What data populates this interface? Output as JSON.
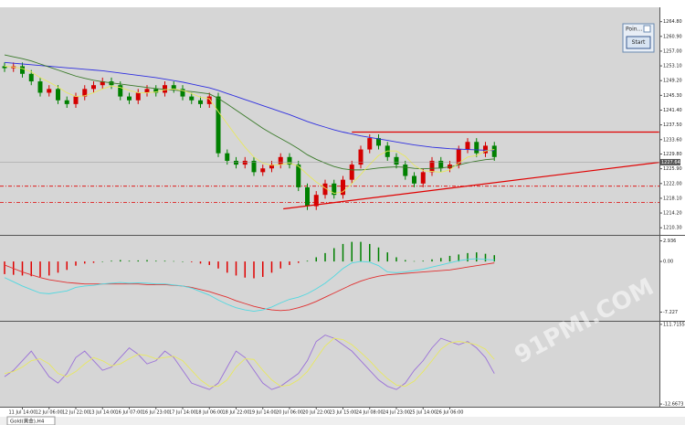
{
  "chart_data": [
    {
      "type": "candlestick",
      "up_color": "#d40000",
      "down_color": "#008000",
      "ylim": [
        1208.9,
        1268.1
      ],
      "yticks": [
        {
          "value": 1264.8,
          "label": "1264.80"
        },
        {
          "value": 1260.9,
          "label": "1260.90"
        },
        {
          "value": 1257,
          "label": "1257.00"
        },
        {
          "value": 1253.1,
          "label": "1253.10"
        },
        {
          "value": 1249.2,
          "label": "1249.20"
        },
        {
          "value": 1245.3,
          "label": "1245.30"
        },
        {
          "value": 1241.4,
          "label": "1241.40"
        },
        {
          "value": 1237.5,
          "label": "1237.50"
        },
        {
          "value": 1233.6,
          "label": "1233.60"
        },
        {
          "value": 1229.8,
          "label": "1229.80"
        },
        {
          "value": 1225.9,
          "label": "1225.90"
        },
        {
          "value": 1222,
          "label": "1222.00"
        },
        {
          "value": 1218.1,
          "label": "1218.10"
        },
        {
          "value": 1214.2,
          "label": "1214.20"
        },
        {
          "value": 1210.3,
          "label": "1210.30"
        }
      ],
      "last_price": 1227.64,
      "open": [
        1253,
        1252.5,
        1253,
        1251,
        1249,
        1246,
        1247,
        1244,
        1243,
        1245,
        1247,
        1248,
        1249,
        1248,
        1245,
        1244,
        1246,
        1247,
        1246,
        1248,
        1247,
        1245,
        1244,
        1243,
        1245,
        1230,
        1228,
        1227,
        1228,
        1225,
        1226,
        1227,
        1229,
        1227,
        1221,
        1216,
        1219,
        1222,
        1219,
        1223,
        1227,
        1231,
        1234,
        1232,
        1229,
        1227,
        1224,
        1222,
        1225,
        1228,
        1226,
        1227,
        1231,
        1233,
        1230,
        1232
      ],
      "high": [
        1254,
        1254,
        1254,
        1252,
        1250,
        1248,
        1248,
        1245,
        1246,
        1248,
        1249,
        1250,
        1250,
        1249,
        1246,
        1247,
        1248,
        1248,
        1249,
        1249,
        1248,
        1246,
        1245,
        1246,
        1246,
        1231,
        1229,
        1229,
        1229,
        1227,
        1228,
        1230,
        1230,
        1228,
        1222,
        1220,
        1223,
        1223,
        1224,
        1228,
        1232,
        1235,
        1235,
        1233,
        1230,
        1228,
        1225,
        1226,
        1229,
        1229,
        1228,
        1232,
        1234,
        1234,
        1233,
        1233
      ],
      "low": [
        1251.5,
        1251.5,
        1250,
        1248,
        1245,
        1245,
        1243,
        1242,
        1242,
        1244,
        1246,
        1247,
        1247,
        1244,
        1243,
        1243,
        1245,
        1245,
        1245,
        1246,
        1244,
        1243,
        1242,
        1242,
        1229,
        1227,
        1226,
        1226,
        1224,
        1224,
        1225,
        1226,
        1226,
        1220,
        1215,
        1215,
        1218,
        1218,
        1218,
        1222,
        1226,
        1230,
        1231,
        1228,
        1226,
        1223,
        1221,
        1221,
        1224,
        1225,
        1225,
        1226,
        1230,
        1229,
        1229,
        1228
      ],
      "close": [
        1252.5,
        1253,
        1251,
        1249,
        1246,
        1247,
        1244,
        1243,
        1245,
        1247,
        1248,
        1249,
        1248,
        1245,
        1244,
        1246,
        1247,
        1246,
        1248,
        1247,
        1245,
        1244,
        1243,
        1245,
        1230,
        1228,
        1227,
        1228,
        1225,
        1226,
        1227,
        1229,
        1227,
        1221,
        1216,
        1219,
        1222,
        1219,
        1223,
        1227,
        1231,
        1234,
        1232,
        1229,
        1227,
        1224,
        1222,
        1225,
        1228,
        1226,
        1227,
        1231,
        1233,
        1230,
        1232,
        1229
      ],
      "series": [
        {
          "color": "#3030e0",
          "values": [
            1254,
            1253.8,
            1253.6,
            1253.4,
            1253.2,
            1253,
            1252.8,
            1252.6,
            1252.4,
            1252.2,
            1252,
            1251.8,
            1251.5,
            1251.2,
            1250.9,
            1250.6,
            1250.3,
            1250,
            1249.6,
            1249.2,
            1248.8,
            1248.3,
            1247.8,
            1247.3,
            1246.6,
            1245.8,
            1245,
            1244.2,
            1243.4,
            1242.6,
            1241.8,
            1241,
            1240.2,
            1239.3,
            1238.4,
            1237.6,
            1236.9,
            1236.2,
            1235.6,
            1235.1,
            1234.6,
            1234.2,
            1233.8,
            1233.4,
            1233,
            1232.6,
            1232.2,
            1231.9,
            1231.6,
            1231.4,
            1231.2,
            1231.1,
            1231,
            1230.9,
            1230.8,
            1230.7
          ]
        },
        {
          "color": "#3a7a2a",
          "values": [
            1256,
            1255.5,
            1255,
            1254.4,
            1253.6,
            1252.8,
            1252,
            1251.2,
            1250.4,
            1249.8,
            1249.3,
            1248.9,
            1248.6,
            1248.3,
            1248,
            1247.7,
            1247.4,
            1247.1,
            1246.9,
            1246.7,
            1246.5,
            1246.3,
            1246,
            1245.7,
            1244.5,
            1243,
            1241.4,
            1239.8,
            1238.2,
            1236.6,
            1235.2,
            1233.9,
            1232.6,
            1231.2,
            1229.6,
            1228.4,
            1227.4,
            1226.5,
            1225.9,
            1225.6,
            1225.6,
            1225.8,
            1226.1,
            1226.3,
            1226.4,
            1226.3,
            1226,
            1225.9,
            1226,
            1226.1,
            1226.4,
            1226.9,
            1227.5,
            1227.9,
            1228.3,
            1228.5
          ]
        },
        {
          "color": "#e8e860",
          "values": [
            1253,
            1252.8,
            1252.4,
            1251.5,
            1250,
            1248.8,
            1247.5,
            1246,
            1245,
            1245.2,
            1246,
            1247,
            1247.8,
            1247.4,
            1246.6,
            1246,
            1246,
            1246.2,
            1246.8,
            1247,
            1246.6,
            1245.8,
            1244.8,
            1244.4,
            1241,
            1237.8,
            1234.6,
            1231.6,
            1229,
            1227.4,
            1226.8,
            1227,
            1227.4,
            1226.6,
            1224.4,
            1222.4,
            1220.8,
            1219.4,
            1219.8,
            1222,
            1224.4,
            1227,
            1229.4,
            1230.6,
            1230.6,
            1229.2,
            1226.8,
            1225.4,
            1225.2,
            1225,
            1225.6,
            1227.4,
            1229,
            1229.4,
            1230.6,
            1231
          ]
        }
      ],
      "trendlines": [
        {
          "color": "#e00000",
          "x": [
            39,
            73.5
          ],
          "y": [
            1235.6,
            1235.6
          ]
        },
        {
          "color": "#e00000",
          "x": [
            31.3,
            73.5
          ],
          "y": [
            1215.3,
            1227.6
          ]
        }
      ],
      "hlines": [
        {
          "color": "#e00000",
          "value": 1221.3
        },
        {
          "color": "#e00000",
          "value": 1217
        }
      ]
    },
    {
      "type": "bar",
      "pos_color": "#008000",
      "neg_color": "#e00000",
      "ylim": [
        -8.2,
        3.4
      ],
      "yticks": [
        2.936,
        {
          "value": 0,
          "label": "0.00"
        },
        -7.227
      ],
      "values": [
        -1.8,
        -1.9,
        -2.0,
        -2.1,
        -2.2,
        -2.0,
        -1.6,
        -1.2,
        -0.6,
        -0.3,
        -0.2,
        0,
        0.1,
        0.2,
        0.1,
        0.15,
        0.2,
        0.1,
        0.1,
        0.05,
        0,
        -0.1,
        -0.3,
        -0.5,
        -1.0,
        -1.6,
        -2.0,
        -2.3,
        -2.4,
        -2.2,
        -1.6,
        -1.0,
        -0.5,
        -0.2,
        0.1,
        0.6,
        1.2,
        1.9,
        2.5,
        2.8,
        2.8,
        2.5,
        2.0,
        1.3,
        0.6,
        0.2,
        0.05,
        0.1,
        0.3,
        0.5,
        0.8,
        1.0,
        1.2,
        1.3,
        1.1,
        0.9
      ],
      "series": [
        {
          "color": "#e03030",
          "values": [
            -0.5,
            -1,
            -1.5,
            -1.9,
            -2.3,
            -2.6,
            -2.8,
            -3,
            -3.1,
            -3.2,
            -3.2,
            -3.2,
            -3.2,
            -3.2,
            -3.2,
            -3.2,
            -3.3,
            -3.3,
            -3.3,
            -3.4,
            -3.5,
            -3.7,
            -4,
            -4.3,
            -4.7,
            -5.1,
            -5.6,
            -6,
            -6.4,
            -6.7,
            -6.9,
            -7,
            -6.9,
            -6.6,
            -6.2,
            -5.7,
            -5.1,
            -4.5,
            -3.9,
            -3.3,
            -2.8,
            -2.4,
            -2.1,
            -1.9,
            -1.8,
            -1.7,
            -1.6,
            -1.5,
            -1.4,
            -1.3,
            -1.2,
            -1,
            -0.8,
            -0.6,
            -0.4,
            -0.2
          ]
        },
        {
          "color": "#50d8e0",
          "values": [
            -2.3,
            -2.9,
            -3.5,
            -4,
            -4.5,
            -4.6,
            -4.4,
            -4.2,
            -3.7,
            -3.5,
            -3.4,
            -3.2,
            -3.1,
            -3,
            -3.1,
            -3.05,
            -3.1,
            -3.2,
            -3.2,
            -3.35,
            -3.5,
            -3.8,
            -4.3,
            -4.8,
            -5.5,
            -6.1,
            -6.6,
            -6.9,
            -7.1,
            -6.9,
            -6.5,
            -5.9,
            -5.4,
            -5.1,
            -4.6,
            -3.9,
            -3.1,
            -2.1,
            -1,
            -0.2,
            0,
            -0.1,
            -0.6,
            -1.5,
            -1.6,
            -1.5,
            -1.3,
            -1.1,
            -0.8,
            -0.5,
            -0.2,
            0.1,
            0.3,
            0.4,
            0.3,
            0.2
          ]
        }
      ]
    },
    {
      "type": "line",
      "ylim": [
        -14,
        113
      ],
      "yticks": [
        111.7155,
        -12.6673
      ],
      "categories": [
        null,
        null,
        "11 Jul 14:00",
        null,
        null,
        "12 Jul 06:00",
        null,
        null,
        "12 Jul 22:00",
        null,
        null,
        "13 Jul 14:00",
        null,
        null,
        "16 Jul 07:00",
        null,
        null,
        "16 Jul 23:00",
        null,
        null,
        "17 Jul 14:00",
        null,
        null,
        "18 Jul 06:00",
        null,
        null,
        "18 Jul 22:00",
        null,
        null,
        "19 Jul 14:00",
        null,
        null,
        "20 Jul 06:00",
        null,
        null,
        "20 Jul 22:00",
        null,
        null,
        "23 Jul 15:00",
        null,
        null,
        "24 Jul 08:00",
        null,
        null,
        "24 Jul 23:00",
        null,
        null,
        "25 Jul 14:00",
        null,
        null,
        "26 Jul 06:00",
        null,
        null,
        null,
        null,
        null
      ],
      "series": [
        {
          "color": "#9a70d8",
          "values": [
            30,
            40,
            55,
            70,
            50,
            30,
            20,
            35,
            60,
            70,
            55,
            40,
            45,
            60,
            75,
            65,
            50,
            55,
            70,
            60,
            40,
            20,
            15,
            10,
            20,
            45,
            70,
            60,
            40,
            20,
            10,
            15,
            25,
            35,
            55,
            85,
            95,
            90,
            80,
            70,
            55,
            40,
            25,
            15,
            10,
            20,
            40,
            55,
            75,
            90,
            85,
            80,
            85,
            75,
            60,
            35
          ]
        },
        {
          "color": "#e8e860",
          "values": [
            35,
            38,
            45,
            55,
            58,
            50,
            35,
            30,
            38,
            50,
            60,
            55,
            47,
            50,
            58,
            65,
            63,
            58,
            60,
            62,
            55,
            40,
            25,
            15,
            15,
            25,
            45,
            58,
            57,
            40,
            25,
            15,
            17,
            25,
            38,
            58,
            78,
            90,
            88,
            80,
            68,
            55,
            40,
            27,
            17,
            15,
            23,
            38,
            55,
            73,
            83,
            85,
            83,
            80,
            73,
            57
          ]
        }
      ]
    }
  ],
  "ui": {
    "panel_title": "Poin...",
    "button": "Start",
    "tab": "Gold(黄金),H4",
    "watermark": "91PMI.COM"
  }
}
